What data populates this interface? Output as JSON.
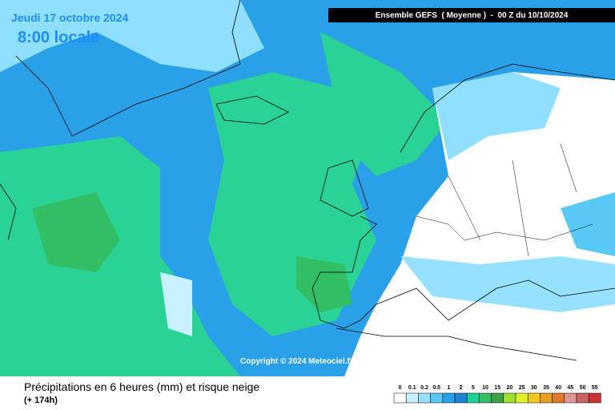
{
  "date_line": "Jeudi 17 octobre 2024",
  "time_line": "8:00 locale",
  "header": "Ensemble GEFS  ( Moyenne )  -  00 Z du 10/10/2024",
  "copyright": "Copyright © 2024 Meteociel.fr",
  "caption": "Précipitations en 6 heures (mm) et risque neige",
  "lead_time": "(+ 174h)",
  "legend": {
    "labels": [
      "0",
      "0.1",
      "0.2",
      "0.5",
      "1",
      "2",
      "5",
      "10",
      "15",
      "20",
      "25",
      "30",
      "35",
      "40",
      "45",
      "50",
      "55"
    ],
    "colors": [
      "#ffffff",
      "#c8f0ff",
      "#96e1ff",
      "#5ac8f5",
      "#28a0e6",
      "#1e82d2",
      "#1ed296",
      "#32be64",
      "#3ca046",
      "#a0dc32",
      "#dcf028",
      "#f0c81e",
      "#e6a01e",
      "#dc7828",
      "#dc9696",
      "#c86464",
      "#c83232"
    ]
  }
}
